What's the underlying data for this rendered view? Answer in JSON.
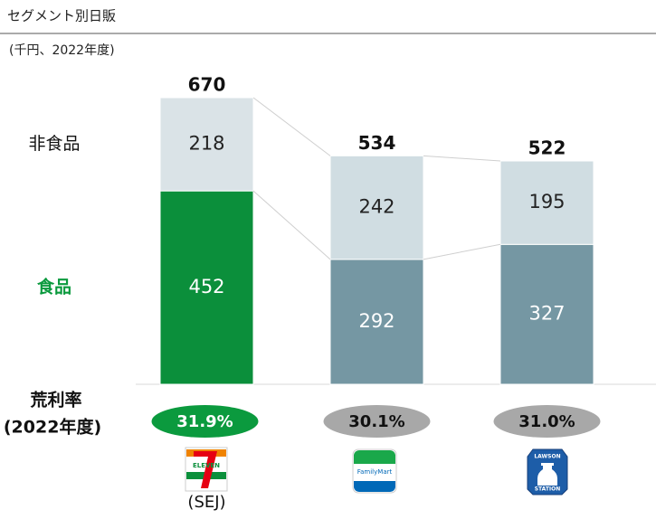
{
  "chart_data": {
    "type": "stacked-bar",
    "title": "セグメント別日販",
    "subtitle": "(千円、2022年度)",
    "categories": [
      "(SEJ)",
      null,
      null
    ],
    "series": [
      {
        "name": "食品",
        "name_color": "#0b9a3e",
        "colors": [
          "#0b8f3b",
          "#7597a3",
          "#7597a3"
        ],
        "label_color": "#ffffff",
        "values": [
          452,
          292,
          327
        ]
      },
      {
        "name": "非食品",
        "name_color": "#111111",
        "colors": [
          "#dae3e7",
          "#d0dde2",
          "#d0dde2"
        ],
        "label_color": "#222222",
        "values": [
          218,
          242,
          195
        ]
      }
    ],
    "totals": [
      670,
      534,
      522
    ],
    "margin_title": [
      "荒利率",
      "(2022年度)"
    ],
    "margins": [
      31.9,
      30.1,
      31.0
    ],
    "margin_value_labels": [
      "31.9%",
      "30.1%",
      "31.0%"
    ],
    "margin_colors": [
      "#0b9a3e",
      "#a8a8a8",
      "#a8a8a8"
    ],
    "margin_text_colors": [
      "#ffffff",
      "#111111",
      "#111111"
    ],
    "logo_texts": [
      "ELEVEN",
      "FamilyMart",
      "LAWSON",
      "STATION"
    ]
  }
}
